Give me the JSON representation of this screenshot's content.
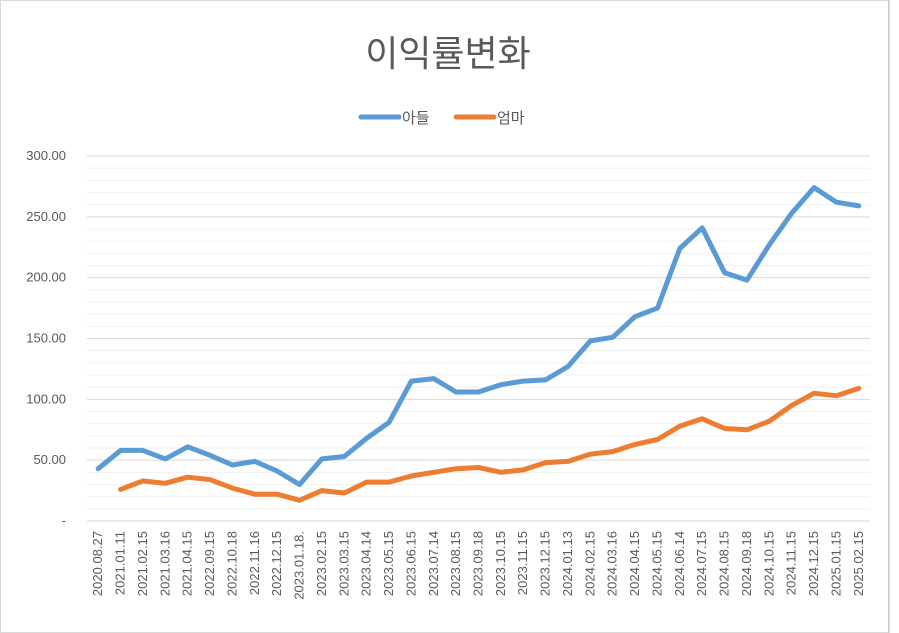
{
  "chart_data": {
    "type": "line",
    "title": "이익률변화",
    "legend": "top-center",
    "grid": true,
    "ylim": [
      0,
      300
    ],
    "y_ticks": [
      "-",
      "50.00",
      "100.00",
      "150.00",
      "200.00",
      "250.00",
      "300.00"
    ],
    "categories": [
      "2020.08.27",
      "2021.01.11",
      "2021.02.15",
      "2021.03.16",
      "2021.04.15",
      "2022.09.15",
      "2022.10.18",
      "2022.11.16",
      "2022.12.15",
      "2023.01.18.",
      "2023.02.15",
      "2023.03.15",
      "2023.04.14",
      "2023.05.15",
      "2023.06.15",
      "2023.07.14",
      "2023.08.15",
      "2023.09.18",
      "2023.10.15",
      "2023.11.15",
      "2023.12.15",
      "2024.01.13",
      "2024.02.15",
      "2024.03.16",
      "2024.04.15",
      "2024.05.15",
      "2024.06.14",
      "2024.07.15",
      "2024.08.15",
      "2024.09.18",
      "2024.10.15",
      "2024.11.15",
      "2024.12.15",
      "2025.01.15",
      "2025.02.15"
    ],
    "series": [
      {
        "name": "아들",
        "color": "#5B9BD5",
        "values": [
          43,
          58,
          58,
          51,
          61,
          54,
          46,
          49,
          41,
          30,
          51,
          53,
          68,
          81,
          115,
          117,
          106,
          106,
          112,
          115,
          116,
          127,
          148,
          151,
          168,
          175,
          224,
          241,
          204,
          198,
          227,
          253,
          274,
          262,
          259
        ]
      },
      {
        "name": "엄마",
        "color": "#ED7D31",
        "values": [
          null,
          26,
          33,
          31,
          36,
          34,
          27,
          22,
          22,
          17,
          25,
          23,
          32,
          32,
          37,
          40,
          43,
          44,
          40,
          42,
          48,
          49,
          55,
          57,
          63,
          67,
          78,
          84,
          76,
          75,
          82,
          95,
          105,
          103,
          109
        ]
      }
    ]
  }
}
